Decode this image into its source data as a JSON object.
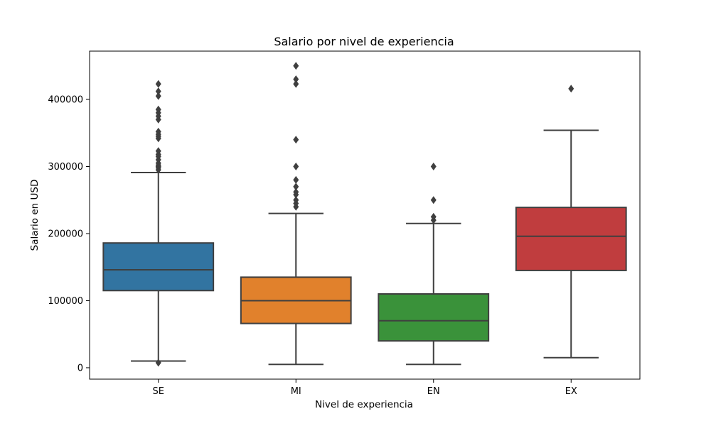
{
  "chart_data": {
    "type": "box",
    "title": "Salario por nivel de experiencia",
    "xlabel": "Nivel de experiencia",
    "ylabel": "Salario en USD",
    "ylim": [
      -17000,
      472000
    ],
    "yticks": [
      0,
      100000,
      200000,
      300000,
      400000
    ],
    "ytick_labels": [
      "0",
      "100000",
      "200000",
      "300000",
      "400000"
    ],
    "grid": false,
    "legend": "none",
    "categories": [
      "SE",
      "MI",
      "EN",
      "EX"
    ],
    "boxes": [
      {
        "category": "SE",
        "color": "#3274a1",
        "whisker_low": 10000,
        "q1": 115000,
        "median": 146000,
        "q3": 186000,
        "whisker_high": 291000,
        "outliers": [
          7500,
          295000,
          298000,
          300000,
          302000,
          305000,
          310000,
          315000,
          318000,
          323000,
          342000,
          345000,
          348000,
          352000,
          370000,
          375000,
          380000,
          385000,
          405000,
          412000,
          423000
        ]
      },
      {
        "category": "MI",
        "color": "#e1812c",
        "whisker_low": 5000,
        "q1": 66000,
        "median": 100000,
        "q3": 135000,
        "whisker_high": 230000,
        "outliers": [
          240000,
          245000,
          250000,
          258000,
          262000,
          270000,
          280000,
          300000,
          340000,
          423000,
          430000,
          450000
        ]
      },
      {
        "category": "EN",
        "color": "#3a923a",
        "whisker_low": 5000,
        "q1": 40000,
        "median": 70000,
        "q3": 110000,
        "whisker_high": 215000,
        "outliers": [
          220000,
          225000,
          250000,
          300000
        ]
      },
      {
        "category": "EX",
        "color": "#c03d3e",
        "whisker_low": 15000,
        "q1": 145000,
        "median": 196000,
        "q3": 239000,
        "whisker_high": 354000,
        "outliers": [
          416000
        ]
      }
    ]
  }
}
